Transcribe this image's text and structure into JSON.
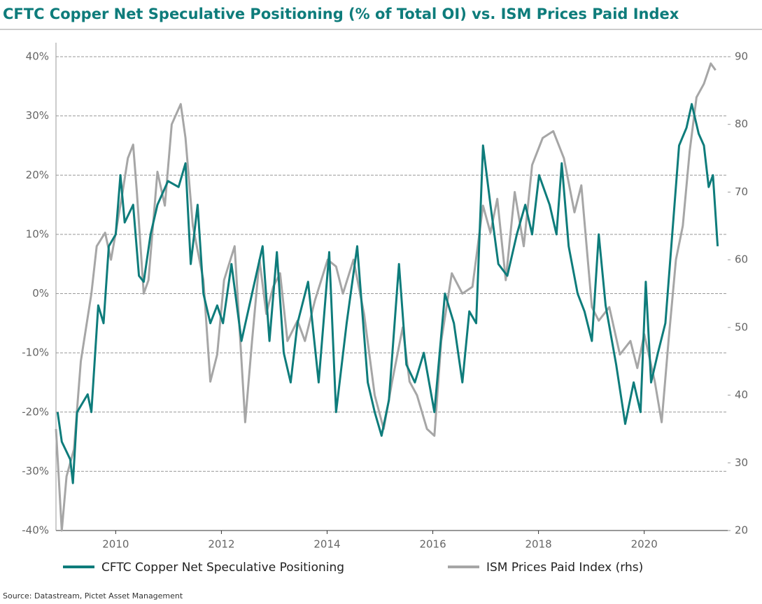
{
  "chart_data": {
    "type": "line",
    "title": "CFTC Copper Net Speculative Positioning (% of Total OI) vs. ISM Prices Paid Index",
    "source": "Source: Datastream, Pictet Asset Management",
    "xlim": [
      2008.87,
      2021.58
    ],
    "xticks": [
      2010,
      2012,
      2014,
      2016,
      2018,
      2020
    ],
    "ylim": [
      -40,
      40
    ],
    "yticks": [
      {
        "value": -40,
        "label": "-40%"
      },
      {
        "value": -30,
        "label": "-30%"
      },
      {
        "value": -20,
        "label": "-20%"
      },
      {
        "value": -10,
        "label": "-10%"
      },
      {
        "value": 0,
        "label": "0%"
      },
      {
        "value": 10,
        "label": "10%"
      },
      {
        "value": 20,
        "label": "20%"
      },
      {
        "value": 30,
        "label": "30%"
      },
      {
        "value": 40,
        "label": "40%"
      }
    ],
    "y2lim": [
      20,
      90
    ],
    "y2ticks": [
      20,
      30,
      40,
      50,
      60,
      70,
      80,
      90
    ],
    "grid": true,
    "series": [
      {
        "name": "CFTC Copper Net Speculative Positioning",
        "color": "#0e7c7b",
        "x": [
          2008.9,
          2008.98,
          2009.14,
          2009.19,
          2009.27,
          2009.47,
          2009.54,
          2009.67,
          2009.77,
          2009.87,
          2010.0,
          2010.09,
          2010.17,
          2010.33,
          2010.44,
          2010.53,
          2010.66,
          2010.79,
          2010.99,
          2011.19,
          2011.32,
          2011.42,
          2011.55,
          2011.66,
          2011.79,
          2011.92,
          2012.03,
          2012.19,
          2012.38,
          2012.58,
          2012.78,
          2012.91,
          2013.05,
          2013.18,
          2013.31,
          2013.44,
          2013.64,
          2013.84,
          2014.04,
          2014.17,
          2014.37,
          2014.57,
          2014.77,
          2014.9,
          2015.03,
          2015.17,
          2015.36,
          2015.5,
          2015.66,
          2015.83,
          2016.03,
          2016.23,
          2016.4,
          2016.56,
          2016.69,
          2016.82,
          2016.95,
          2017.09,
          2017.24,
          2017.41,
          2017.59,
          2017.75,
          2017.88,
          2018.01,
          2018.21,
          2018.34,
          2018.44,
          2018.57,
          2018.74,
          2018.87,
          2019.01,
          2019.14,
          2019.27,
          2019.47,
          2019.64,
          2019.8,
          2019.93,
          2020.03,
          2020.13,
          2020.26,
          2020.4,
          2020.53,
          2020.66,
          2020.8,
          2020.9,
          2021.03,
          2021.13,
          2021.22,
          2021.3,
          2021.39
        ],
        "values": [
          -20,
          -25,
          -28,
          -32,
          -20,
          -17,
          -20,
          -2,
          -5,
          8,
          10,
          20,
          12,
          15,
          3,
          2,
          10,
          15,
          19,
          18,
          22,
          5,
          15,
          0,
          -5,
          -2,
          -5,
          5,
          -8,
          0,
          8,
          -8,
          7,
          -10,
          -15,
          -5,
          2,
          -15,
          7,
          -20,
          -5,
          8,
          -15,
          -20,
          -24,
          -18,
          5,
          -12,
          -15,
          -10,
          -20,
          0,
          -5,
          -15,
          -3,
          -5,
          25,
          15,
          5,
          3,
          10,
          15,
          10,
          20,
          15,
          10,
          22,
          8,
          0,
          -3,
          -8,
          10,
          -2,
          -12,
          -22,
          -15,
          -20,
          2,
          -15,
          -10,
          -5,
          10,
          25,
          28,
          32,
          27,
          25,
          18,
          20,
          8
        ]
      },
      {
        "name": "ISM Prices Paid Index (rhs)",
        "color": "#a6a6a6",
        "axis": "y2",
        "x": [
          2008.87,
          2008.98,
          2009.07,
          2009.21,
          2009.34,
          2009.54,
          2009.64,
          2009.8,
          2009.91,
          2010.0,
          2010.13,
          2010.23,
          2010.33,
          2010.4,
          2010.53,
          2010.62,
          2010.79,
          2010.93,
          2011.06,
          2011.23,
          2011.32,
          2011.46,
          2011.66,
          2011.79,
          2011.92,
          2012.05,
          2012.25,
          2012.45,
          2012.58,
          2012.72,
          2012.85,
          2012.98,
          2013.11,
          2013.25,
          2013.44,
          2013.58,
          2013.77,
          2014.01,
          2014.17,
          2014.3,
          2014.5,
          2014.7,
          2014.9,
          2015.07,
          2015.23,
          2015.43,
          2015.56,
          2015.7,
          2015.89,
          2016.03,
          2016.16,
          2016.36,
          2016.56,
          2016.75,
          2016.95,
          2017.09,
          2017.22,
          2017.38,
          2017.55,
          2017.72,
          2017.88,
          2018.08,
          2018.28,
          2018.48,
          2018.68,
          2018.81,
          2019.01,
          2019.14,
          2019.34,
          2019.54,
          2019.74,
          2019.87,
          2020.0,
          2020.2,
          2020.33,
          2020.46,
          2020.6,
          2020.73,
          2020.86,
          2020.99,
          2021.13,
          2021.26,
          2021.35
        ],
        "values": [
          35,
          20,
          28,
          32,
          45,
          55,
          62,
          64,
          60,
          64,
          70,
          75,
          77,
          70,
          55,
          57,
          73,
          68,
          80,
          83,
          78,
          65,
          57,
          42,
          46,
          57,
          62,
          36,
          48,
          60,
          52,
          56,
          58,
          48,
          51,
          48,
          54,
          60,
          59,
          55,
          60,
          52,
          40,
          35,
          42,
          50,
          42,
          40,
          35,
          34,
          48,
          58,
          55,
          56,
          68,
          64,
          69,
          57,
          70,
          62,
          74,
          78,
          79,
          75,
          67,
          71,
          53,
          51,
          53,
          46,
          48,
          44,
          49,
          42,
          36,
          48,
          60,
          65,
          76,
          84,
          86,
          89,
          88
        ]
      }
    ]
  }
}
